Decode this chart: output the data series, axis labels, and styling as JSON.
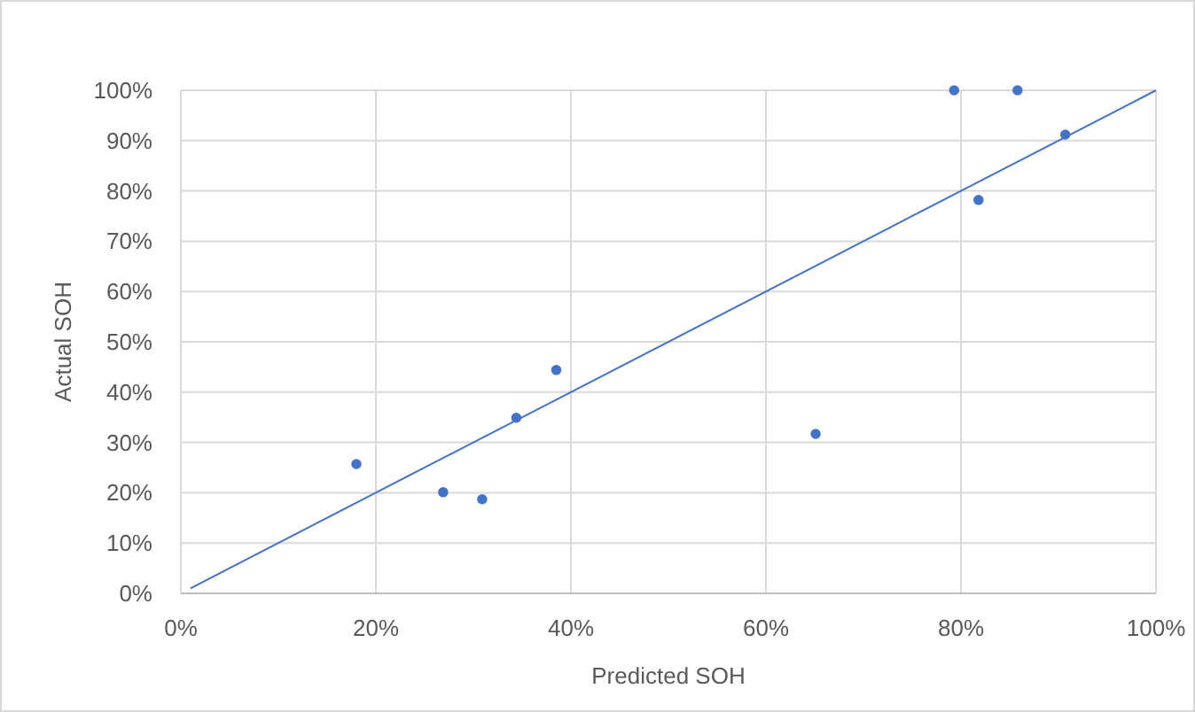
{
  "chart_data": {
    "type": "scatter",
    "xlabel": "Predicted SOH",
    "ylabel": "Actual SOH",
    "grid": true,
    "marker": "circle",
    "xlim": [
      0,
      100
    ],
    "ylim": [
      0,
      100
    ],
    "xticks": [
      {
        "value": 0,
        "label": "0%"
      },
      {
        "value": 20,
        "label": "20%"
      },
      {
        "value": 40,
        "label": "40%"
      },
      {
        "value": 60,
        "label": "60%"
      },
      {
        "value": 80,
        "label": "80%"
      },
      {
        "value": 100,
        "label": "100%"
      }
    ],
    "yticks": [
      {
        "value": 0,
        "label": "0%"
      },
      {
        "value": 10,
        "label": "10%"
      },
      {
        "value": 20,
        "label": "20%"
      },
      {
        "value": 30,
        "label": "30%"
      },
      {
        "value": 40,
        "label": "40%"
      },
      {
        "value": 50,
        "label": "50%"
      },
      {
        "value": 60,
        "label": "60%"
      },
      {
        "value": 70,
        "label": "70%"
      },
      {
        "value": 80,
        "label": "80%"
      },
      {
        "value": 90,
        "label": "90%"
      },
      {
        "value": 100,
        "label": "100%"
      }
    ],
    "series": [
      {
        "type": "scatter",
        "color": "#4472c4",
        "x": [
          18,
          26.9,
          30.9,
          34.4,
          38.5,
          65.1,
          79.3,
          85.8,
          81.8,
          90.7
        ],
        "values": [
          25.7,
          20.1,
          18.7,
          34.9,
          44.4,
          31.7,
          100,
          100,
          78.2,
          91.2
        ]
      },
      {
        "type": "line",
        "color": "#4472c4",
        "marker": "none",
        "line_style": "solid",
        "x": [
          1,
          100
        ],
        "values": [
          1,
          100
        ]
      }
    ]
  }
}
